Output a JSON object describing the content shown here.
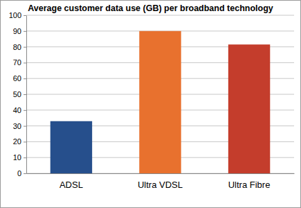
{
  "chart_data": {
    "type": "bar",
    "title": "Average customer data use (GB) per broadband technology",
    "categories": [
      "ADSL",
      "Ultra VDSL",
      "Ultra Fibre"
    ],
    "values": [
      33,
      90,
      81.5
    ],
    "colors": [
      "#264f8c",
      "#e8712e",
      "#c43d2c"
    ],
    "ylim": [
      0,
      100
    ],
    "yticks": [
      0,
      10,
      20,
      30,
      40,
      50,
      60,
      70,
      80,
      90,
      100
    ],
    "grid": true
  }
}
